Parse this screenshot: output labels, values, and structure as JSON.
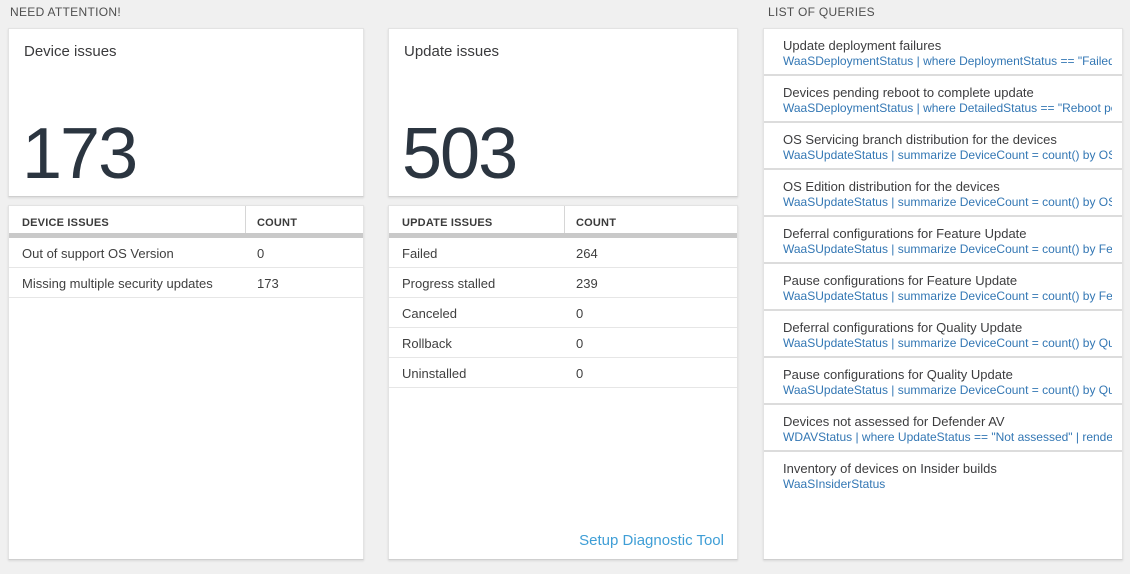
{
  "sections": {
    "need_attention": "NEED ATTENTION!",
    "list_of_queries": "LIST OF QUERIES"
  },
  "device_card": {
    "title": "Device issues",
    "count": "173",
    "table": {
      "headers": [
        "DEVICE ISSUES",
        "COUNT"
      ],
      "rows": [
        {
          "label": "Out of support OS Version",
          "count": "0"
        },
        {
          "label": "Missing multiple security updates",
          "count": "173"
        }
      ]
    }
  },
  "update_card": {
    "title": "Update issues",
    "count": "503",
    "table": {
      "headers": [
        "UPDATE ISSUES",
        "COUNT"
      ],
      "rows": [
        {
          "label": "Failed",
          "count": "264"
        },
        {
          "label": "Progress stalled",
          "count": "239"
        },
        {
          "label": "Canceled",
          "count": "0"
        },
        {
          "label": "Rollback",
          "count": "0"
        },
        {
          "label": "Uninstalled",
          "count": "0"
        }
      ]
    },
    "link_label": "Setup Diagnostic Tool"
  },
  "queries": [
    {
      "title": "Update deployment failures",
      "query": "WaaSDeploymentStatus | where DeploymentStatus == \"Failed\" |..."
    },
    {
      "title": "Devices pending reboot to complete update",
      "query": "WaaSDeploymentStatus | where DetailedStatus == \"Reboot pend..."
    },
    {
      "title": "OS Servicing branch distribution for the devices",
      "query": "WaaSUpdateStatus | summarize DeviceCount = count() by OSSer..."
    },
    {
      "title": "OS Edition distribution for the devices",
      "query": "WaaSUpdateStatus | summarize DeviceCount = count() by OSEdit..."
    },
    {
      "title": "Deferral configurations for Feature Update",
      "query": "WaaSUpdateStatus | summarize DeviceCount = count() by Featur..."
    },
    {
      "title": "Pause configurations for Feature Update",
      "query": "WaaSUpdateStatus | summarize DeviceCount = count() by Featur..."
    },
    {
      "title": "Deferral configurations for Quality Update",
      "query": "WaaSUpdateStatus | summarize DeviceCount = count() by Qualit..."
    },
    {
      "title": "Pause configurations for Quality Update",
      "query": "WaaSUpdateStatus | summarize DeviceCount = count() by Qualit..."
    },
    {
      "title": "Devices not assessed for Defender AV",
      "query": "WDAVStatus | where UpdateStatus == \"Not assessed\" | render ta..."
    },
    {
      "title": "Inventory of devices on Insider builds",
      "query": "WaaSInsiderStatus"
    }
  ],
  "colors": {
    "page_background": "#f0f0f0",
    "big_number": "#2b3540",
    "query_code_blue": "#3377b4",
    "setup_link_blue": "#3f9ed6",
    "table_header_bar": "#c9c9c9"
  }
}
